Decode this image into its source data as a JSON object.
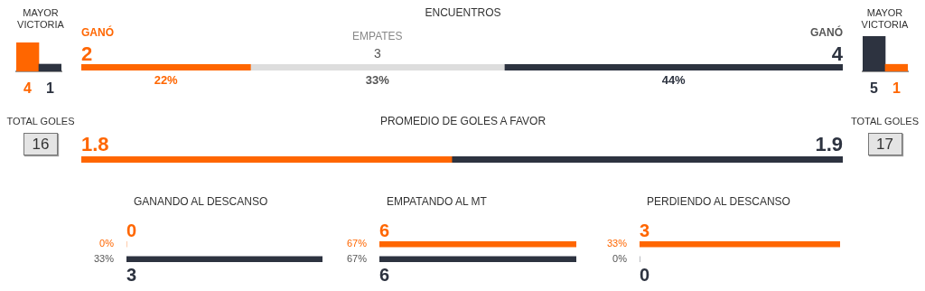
{
  "chart_data": [
    {
      "type": "bar",
      "title": "MAYOR VICTORIA",
      "categories": [
        null,
        null
      ],
      "values": [
        4,
        1
      ],
      "colors": [
        "#ff6600",
        "#2d3340"
      ],
      "data_labels": true
    },
    {
      "type": "bar",
      "orientation": "horizontal",
      "stacked": true,
      "title": "ENCUENTROS",
      "categories": [
        null
      ],
      "data_labels": true,
      "annotations": [
        "22%",
        "33%",
        "44%"
      ],
      "series": [
        {
          "name": "GANÓ",
          "color": "#ff6600",
          "values": [
            2
          ]
        },
        {
          "name": "EMPATES",
          "color": "#dddddd",
          "values": [
            3
          ]
        },
        {
          "name": "GANÓ",
          "color": "#2d3340",
          "values": [
            4
          ]
        }
      ]
    },
    {
      "type": "bar",
      "title": "MAYOR VICTORIA",
      "categories": [
        null,
        null
      ],
      "values": [
        5,
        1
      ],
      "colors": [
        "#2d3340",
        "#ff6600"
      ],
      "data_labels": true
    },
    {
      "type": "other",
      "title": "TOTAL GOLES",
      "annotations": [
        "16"
      ]
    },
    {
      "type": "bar",
      "orientation": "horizontal",
      "stacked": true,
      "title": "PROMEDIO DE GOLES A FAVOR",
      "categories": [
        null
      ],
      "data_labels": true,
      "series": [
        {
          "color": "#ff6600",
          "values": [
            1.8
          ]
        },
        {
          "color": "#2d3340",
          "values": [
            1.9
          ]
        }
      ]
    },
    {
      "type": "other",
      "title": "TOTAL GOLES",
      "annotations": [
        "17"
      ]
    },
    {
      "type": "bar",
      "orientation": "horizontal",
      "title": "GANANDO AL DESCANSO",
      "categories": [
        "0%",
        "33%"
      ],
      "values": [
        0,
        3
      ],
      "colors": [
        "#ff6600",
        "#2d3340"
      ],
      "data_labels": true
    },
    {
      "type": "bar",
      "orientation": "horizontal",
      "title": "EMPATANDO AL MT",
      "categories": [
        "67%",
        "67%"
      ],
      "values": [
        6,
        6
      ],
      "colors": [
        "#ff6600",
        "#2d3340"
      ],
      "data_labels": true
    },
    {
      "type": "bar",
      "orientation": "horizontal",
      "title": "PERDIENDO AL DESCANSO",
      "categories": [
        "33%",
        "0%"
      ],
      "values": [
        3,
        0
      ],
      "colors": [
        "#ff6600",
        "#2d3340"
      ],
      "data_labels": true
    }
  ]
}
